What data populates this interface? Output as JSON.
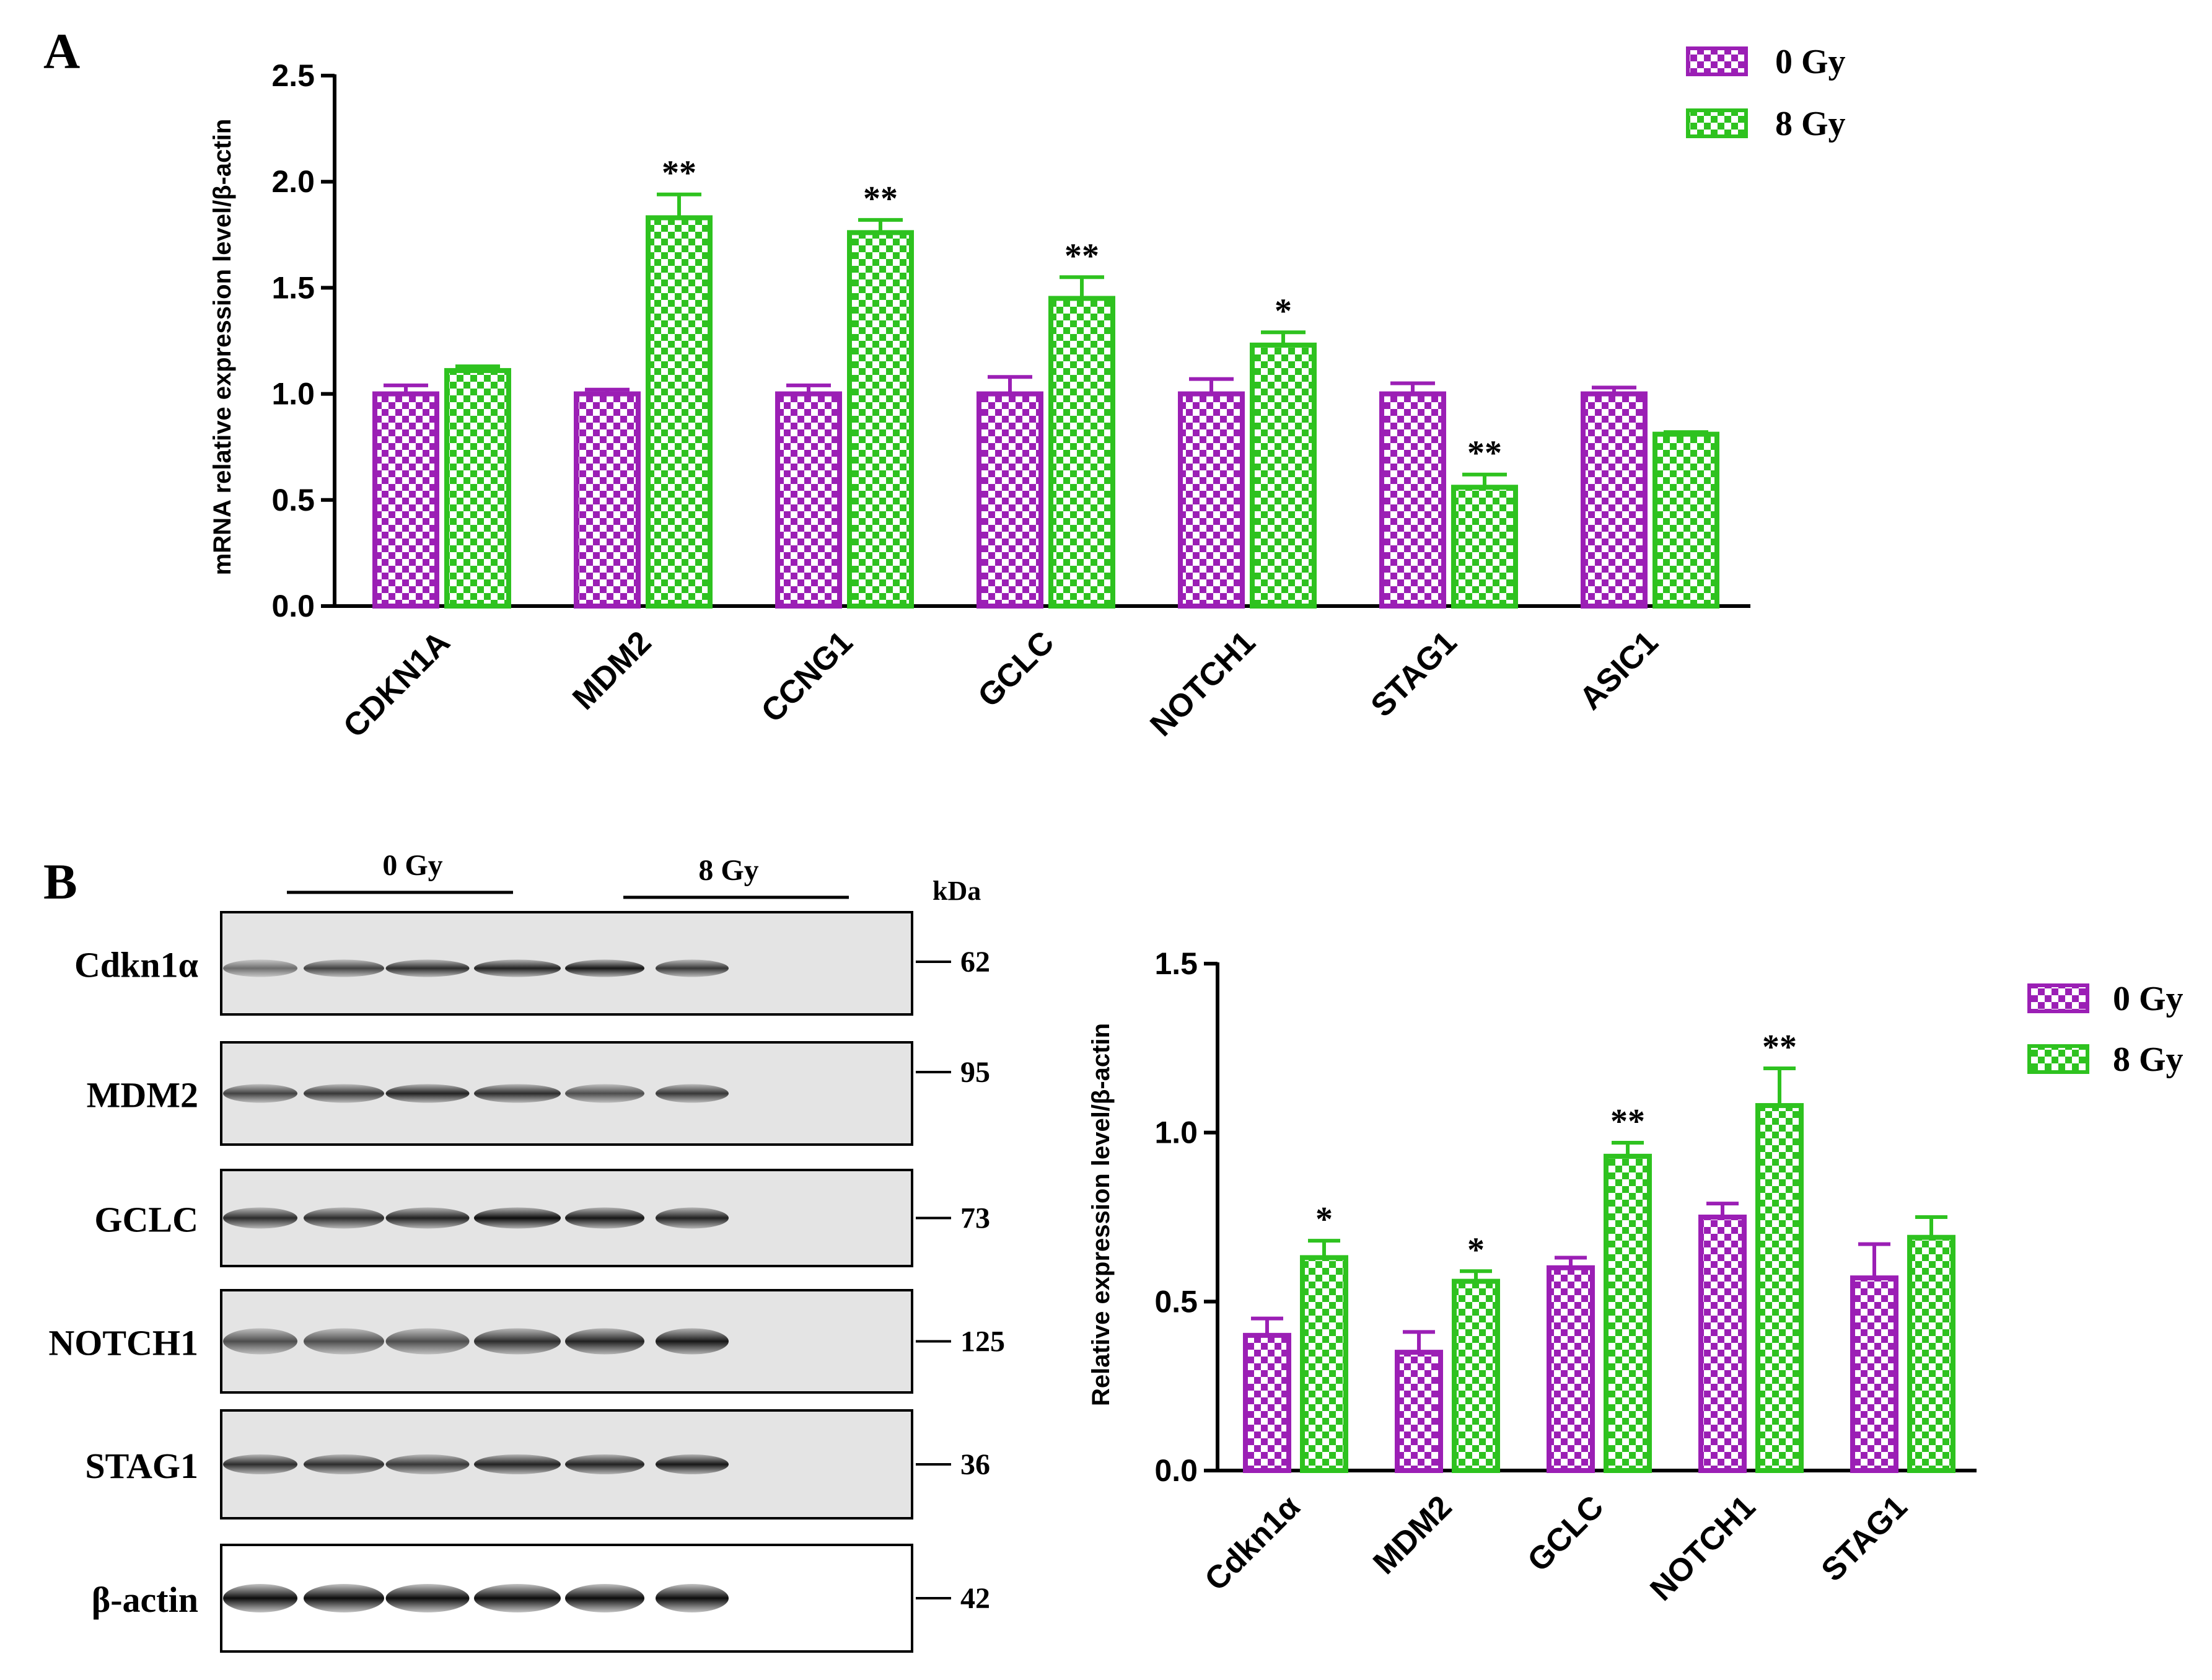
{
  "panels": {
    "a_label": "A",
    "b_label": "B"
  },
  "colors": {
    "group_0gy": "#9B1FB5",
    "group_8gy": "#2EC21F"
  },
  "chart_data": [
    {
      "type": "bar",
      "title": "",
      "xlabel": "",
      "ylabel": "mRNA relative expression level/β-actin",
      "ylim": [
        0,
        2.5
      ],
      "yticks": [
        "0.0",
        "0.5",
        "1.0",
        "1.5",
        "2.0",
        "2.5"
      ],
      "categories": [
        "CDKN1A",
        "MDM2",
        "CCNG1",
        "GCLC",
        "NOTCH1",
        "STAG1",
        "ASIC1"
      ],
      "series": [
        {
          "name": "0 Gy",
          "values": [
            1.0,
            1.0,
            1.0,
            1.0,
            1.0,
            1.0,
            1.0
          ],
          "errors": [
            0.04,
            0.02,
            0.04,
            0.08,
            0.07,
            0.05,
            0.03
          ]
        },
        {
          "name": "8 Gy",
          "values": [
            1.11,
            1.83,
            1.76,
            1.45,
            1.23,
            0.56,
            0.81
          ],
          "errors": [
            0.02,
            0.11,
            0.06,
            0.1,
            0.06,
            0.06,
            0.01
          ]
        }
      ],
      "significance": [
        "",
        "**",
        "**",
        "**",
        "*",
        "**",
        ""
      ],
      "legend": "top-right",
      "grid": false
    },
    {
      "type": "bar",
      "title": "",
      "xlabel": "",
      "ylabel": "Relative expression level/β-actin",
      "ylim": [
        0,
        1.5
      ],
      "yticks": [
        "0.0",
        "0.5",
        "1.0",
        "1.5"
      ],
      "categories": [
        "Cdkn1α",
        "MDM2",
        "GCLC",
        "NOTCH1",
        "STAG1"
      ],
      "series": [
        {
          "name": "0 Gy",
          "values": [
            0.4,
            0.35,
            0.6,
            0.75,
            0.57
          ],
          "errors": [
            0.05,
            0.06,
            0.03,
            0.04,
            0.1
          ]
        },
        {
          "name": "8 Gy",
          "values": [
            0.63,
            0.56,
            0.93,
            1.08,
            0.69
          ],
          "errors": [
            0.05,
            0.03,
            0.04,
            0.11,
            0.06
          ]
        }
      ],
      "significance": [
        "*",
        "*",
        "**",
        "**",
        ""
      ],
      "legend": "top-right",
      "grid": false
    }
  ],
  "western_blot": {
    "group_labels": [
      "0 Gy",
      "8 Gy"
    ],
    "kda_header": "kDa",
    "rows": [
      {
        "protein": "Cdkn1α",
        "kda": "62"
      },
      {
        "protein": "MDM2",
        "kda": "95"
      },
      {
        "protein": "GCLC",
        "kda": "73"
      },
      {
        "protein": "NOTCH1",
        "kda": "125"
      },
      {
        "protein": "STAG1",
        "kda": "36"
      },
      {
        "protein": "β-actin",
        "kda": "42"
      }
    ]
  }
}
